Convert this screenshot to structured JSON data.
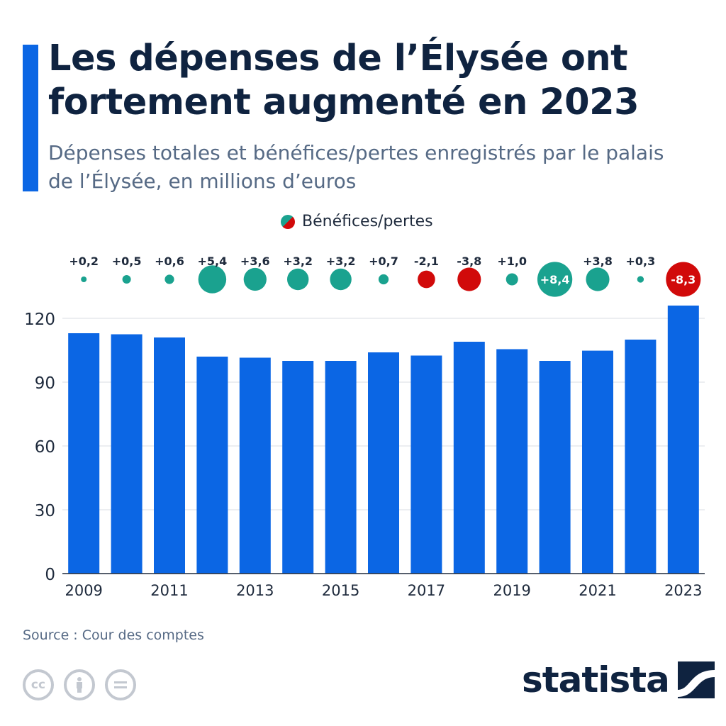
{
  "header": {
    "title": "Les dépenses de l’Élysée ont fortement augmenté en 2023",
    "subtitle": "Dépenses totales et bénéfices/pertes enregistrés par le palais de l’Élysée, en millions d’euros"
  },
  "legend": {
    "label": "Bénéfices/pertes"
  },
  "colors": {
    "bar": "#0b66e4",
    "profit": "#1aa28f",
    "loss": "#d10a0a",
    "grid": "#d8dde3",
    "text": "#1e2a3c"
  },
  "chart_data": {
    "type": "bar",
    "categories": [
      "2009",
      "2010",
      "2011",
      "2012",
      "2013",
      "2014",
      "2015",
      "2016",
      "2017",
      "2018",
      "2019",
      "2020",
      "2021",
      "2022",
      "2023"
    ],
    "x_tick_labels": [
      "2009",
      "",
      "2011",
      "",
      "2013",
      "",
      "2015",
      "",
      "2017",
      "",
      "2019",
      "",
      "2021",
      "",
      "2023"
    ],
    "series": [
      {
        "values": [
          113,
          112.5,
          111,
          102,
          101.5,
          100,
          100,
          104,
          102.5,
          109,
          105.5,
          100,
          104.8,
          110,
          126
        ]
      },
      {
        "name": "Bénéfices/pertes",
        "values": [
          0.2,
          0.5,
          0.6,
          5.4,
          3.6,
          3.2,
          3.2,
          0.7,
          -2.1,
          -3.8,
          1.0,
          8.4,
          3.8,
          0.3,
          -8.3
        ],
        "labels": [
          "+0,2",
          "+0,5",
          "+0,6",
          "+5,4",
          "+3,6",
          "+3,2",
          "+3,2",
          "+0,7",
          "-2,1",
          "-3,8",
          "+1,0",
          "+8,4",
          "+3,8",
          "+0,3",
          "-8,3"
        ]
      }
    ],
    "y_ticks": [
      0,
      30,
      60,
      90,
      120
    ],
    "ylim": [
      0,
      130
    ],
    "grid": true,
    "legend_position": "top-center"
  },
  "footer": {
    "source": "Source : Cour des comptes",
    "logo_text": "statista",
    "license_icons": [
      "cc-icon",
      "attribution-icon",
      "no-derivatives-icon"
    ]
  }
}
